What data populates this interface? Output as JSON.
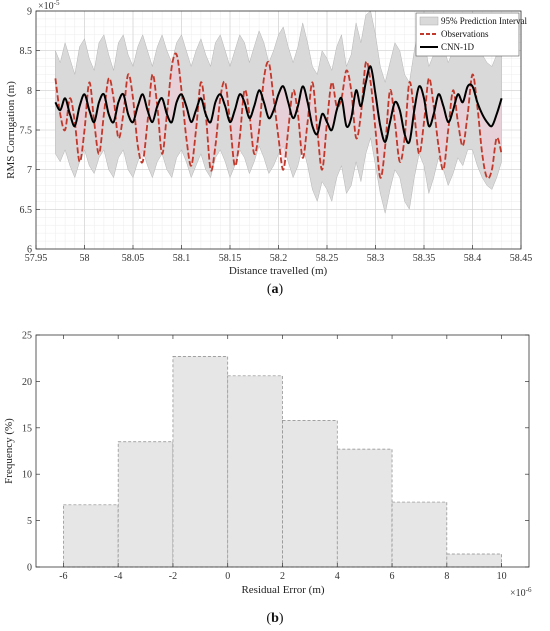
{
  "chart_data": [
    {
      "type": "line",
      "panel_label": "a",
      "xlabel": "Distance travelled (m)",
      "ylabel": "RMS Corrugation (m)",
      "y_exponent": "×10",
      "y_exponent_power": "-5",
      "xlim": [
        57.95,
        58.45
      ],
      "ylim": [
        6.0,
        9.0
      ],
      "x_ticks": [
        "57.95",
        "58",
        "58.05",
        "58.1",
        "58.15",
        "58.2",
        "58.25",
        "58.3",
        "58.35",
        "58.4",
        "58.45"
      ],
      "y_ticks": [
        "6",
        "6.5",
        "7",
        "7.5",
        "8",
        "8.5",
        "9"
      ],
      "grid": true,
      "legend_position": "top-right",
      "legend": [
        "95% Prediction Interval",
        "Observations",
        "CNN-1D"
      ],
      "series": [
        {
          "name": "Observations",
          "x": [
            57.97,
            57.975,
            57.98,
            57.985,
            57.99,
            57.995,
            58.0,
            58.005,
            58.01,
            58.015,
            58.02,
            58.025,
            58.03,
            58.035,
            58.04,
            58.045,
            58.05,
            58.055,
            58.06,
            58.065,
            58.07,
            58.075,
            58.08,
            58.085,
            58.09,
            58.095,
            58.1,
            58.105,
            58.11,
            58.115,
            58.12,
            58.125,
            58.13,
            58.135,
            58.14,
            58.145,
            58.15,
            58.155,
            58.16,
            58.165,
            58.17,
            58.175,
            58.18,
            58.185,
            58.19,
            58.195,
            58.2,
            58.205,
            58.21,
            58.215,
            58.22,
            58.225,
            58.23,
            58.235,
            58.24,
            58.245,
            58.25,
            58.255,
            58.26,
            58.265,
            58.27,
            58.275,
            58.28,
            58.285,
            58.29,
            58.295,
            58.3,
            58.305,
            58.31,
            58.315,
            58.32,
            58.325,
            58.33,
            58.335,
            58.34,
            58.345,
            58.35,
            58.355,
            58.36,
            58.365,
            58.37,
            58.375,
            58.38,
            58.385,
            58.39,
            58.395,
            58.4,
            58.405,
            58.41,
            58.415,
            58.42,
            58.425,
            58.43
          ],
          "values": [
            8.15,
            7.7,
            7.5,
            7.9,
            7.6,
            7.1,
            7.5,
            8.1,
            7.6,
            7.2,
            7.7,
            8.15,
            7.9,
            7.4,
            7.7,
            8.2,
            7.9,
            7.3,
            7.1,
            7.6,
            8.2,
            7.8,
            7.2,
            7.7,
            8.3,
            8.45,
            8.0,
            7.4,
            7.05,
            7.5,
            8.1,
            7.7,
            7.0,
            7.3,
            7.9,
            8.1,
            7.6,
            7.05,
            7.4,
            8.0,
            7.7,
            7.2,
            7.5,
            8.15,
            8.35,
            7.9,
            7.4,
            7.0,
            7.5,
            8.0,
            7.7,
            7.15,
            7.6,
            8.1,
            7.5,
            7.0,
            7.6,
            8.1,
            7.8,
            7.9,
            8.25,
            8.0,
            7.4,
            7.7,
            8.35,
            8.1,
            7.5,
            6.9,
            7.3,
            8.0,
            7.6,
            7.1,
            7.4,
            8.1,
            7.7,
            7.2,
            7.6,
            8.15,
            7.8,
            7.3,
            7.0,
            7.5,
            8.0,
            7.6,
            7.3,
            7.7,
            8.2,
            7.8,
            7.2,
            6.9,
            7.0,
            7.4,
            7.2
          ]
        },
        {
          "name": "CNN-1D",
          "x": [
            57.97,
            57.975,
            57.98,
            57.985,
            57.99,
            57.995,
            58.0,
            58.005,
            58.01,
            58.015,
            58.02,
            58.025,
            58.03,
            58.035,
            58.04,
            58.045,
            58.05,
            58.055,
            58.06,
            58.065,
            58.07,
            58.075,
            58.08,
            58.085,
            58.09,
            58.095,
            58.1,
            58.105,
            58.11,
            58.115,
            58.12,
            58.125,
            58.13,
            58.135,
            58.14,
            58.145,
            58.15,
            58.155,
            58.16,
            58.165,
            58.17,
            58.175,
            58.18,
            58.185,
            58.19,
            58.195,
            58.2,
            58.205,
            58.21,
            58.215,
            58.22,
            58.225,
            58.23,
            58.235,
            58.24,
            58.245,
            58.25,
            58.255,
            58.26,
            58.265,
            58.27,
            58.275,
            58.28,
            58.285,
            58.29,
            58.295,
            58.3,
            58.305,
            58.31,
            58.315,
            58.32,
            58.325,
            58.33,
            58.335,
            58.34,
            58.345,
            58.35,
            58.355,
            58.36,
            58.365,
            58.37,
            58.375,
            58.38,
            58.385,
            58.39,
            58.395,
            58.4,
            58.405,
            58.41,
            58.415,
            58.42,
            58.425,
            58.43
          ],
          "values": [
            7.85,
            7.75,
            7.9,
            7.7,
            7.55,
            7.8,
            7.95,
            7.75,
            7.6,
            7.85,
            7.95,
            7.7,
            7.6,
            7.85,
            7.95,
            7.7,
            7.6,
            7.8,
            7.95,
            7.75,
            7.6,
            7.8,
            7.9,
            7.7,
            7.6,
            7.85,
            7.95,
            7.8,
            7.6,
            7.75,
            7.9,
            7.7,
            7.6,
            7.85,
            7.95,
            7.8,
            7.6,
            7.75,
            7.95,
            7.85,
            7.65,
            7.8,
            8.0,
            7.85,
            7.65,
            7.75,
            7.95,
            8.05,
            7.85,
            7.65,
            7.8,
            8.05,
            7.85,
            7.55,
            7.45,
            7.7,
            7.6,
            7.5,
            7.75,
            7.9,
            7.55,
            7.65,
            8.0,
            7.8,
            8.1,
            8.3,
            7.95,
            7.55,
            7.35,
            7.6,
            7.85,
            7.75,
            7.45,
            7.35,
            7.75,
            8.05,
            7.9,
            7.55,
            7.7,
            7.95,
            7.8,
            7.6,
            7.75,
            7.95,
            7.85,
            8.05,
            8.05,
            7.85,
            7.7,
            7.6,
            7.55,
            7.7,
            7.9
          ]
        }
      ],
      "prediction_interval": {
        "name": "95% Prediction Interval",
        "x": [
          57.97,
          57.975,
          57.98,
          57.985,
          57.99,
          57.995,
          58.0,
          58.005,
          58.01,
          58.015,
          58.02,
          58.025,
          58.03,
          58.035,
          58.04,
          58.045,
          58.05,
          58.055,
          58.06,
          58.065,
          58.07,
          58.075,
          58.08,
          58.085,
          58.09,
          58.095,
          58.1,
          58.105,
          58.11,
          58.115,
          58.12,
          58.125,
          58.13,
          58.135,
          58.14,
          58.145,
          58.15,
          58.155,
          58.16,
          58.165,
          58.17,
          58.175,
          58.18,
          58.185,
          58.19,
          58.195,
          58.2,
          58.205,
          58.21,
          58.215,
          58.22,
          58.225,
          58.23,
          58.235,
          58.24,
          58.245,
          58.25,
          58.255,
          58.26,
          58.265,
          58.27,
          58.275,
          58.28,
          58.285,
          58.29,
          58.295,
          58.3,
          58.305,
          58.31,
          58.315,
          58.32,
          58.325,
          58.33,
          58.335,
          58.34,
          58.345,
          58.35,
          58.355,
          58.36,
          58.365,
          58.37,
          58.375,
          58.38,
          58.385,
          58.39,
          58.395,
          58.4,
          58.405,
          58.41,
          58.415,
          58.42,
          58.425,
          58.43
        ],
        "upper": [
          8.5,
          8.35,
          8.6,
          8.4,
          8.2,
          8.55,
          8.65,
          8.4,
          8.25,
          8.6,
          8.7,
          8.45,
          8.25,
          8.6,
          8.7,
          8.45,
          8.3,
          8.55,
          8.7,
          8.5,
          8.3,
          8.55,
          8.7,
          8.5,
          8.35,
          8.6,
          8.7,
          8.5,
          8.3,
          8.5,
          8.65,
          8.45,
          8.3,
          8.6,
          8.7,
          8.5,
          8.3,
          8.5,
          8.7,
          8.6,
          8.35,
          8.55,
          8.75,
          8.6,
          8.35,
          8.5,
          8.7,
          8.8,
          8.55,
          8.35,
          8.55,
          8.85,
          8.6,
          8.3,
          8.2,
          8.5,
          8.4,
          8.25,
          8.55,
          8.7,
          8.3,
          8.45,
          8.85,
          8.6,
          8.95,
          9.0,
          8.7,
          8.3,
          8.1,
          8.35,
          8.6,
          8.5,
          8.2,
          8.1,
          8.5,
          8.8,
          8.65,
          8.3,
          8.45,
          8.7,
          8.55,
          8.35,
          8.5,
          8.7,
          8.6,
          8.8,
          8.8,
          8.6,
          8.45,
          8.35,
          8.3,
          8.45,
          8.65
        ],
        "lower": [
          7.2,
          7.1,
          7.25,
          7.05,
          6.9,
          7.1,
          7.25,
          7.05,
          6.95,
          7.15,
          7.25,
          7.0,
          6.9,
          7.15,
          7.25,
          7.0,
          6.9,
          7.1,
          7.25,
          7.05,
          6.9,
          7.1,
          7.2,
          7.0,
          6.9,
          7.15,
          7.25,
          7.1,
          6.9,
          7.05,
          7.2,
          7.0,
          6.9,
          7.15,
          7.25,
          7.1,
          6.9,
          7.05,
          7.25,
          7.15,
          6.95,
          7.1,
          7.3,
          7.15,
          6.95,
          7.05,
          7.2,
          7.3,
          7.1,
          6.9,
          7.05,
          7.3,
          7.05,
          6.75,
          6.6,
          6.85,
          6.75,
          6.6,
          6.9,
          7.05,
          6.7,
          6.8,
          7.1,
          6.85,
          7.2,
          7.4,
          7.05,
          6.7,
          6.45,
          6.75,
          7.0,
          6.9,
          6.6,
          6.5,
          6.9,
          7.2,
          7.05,
          6.7,
          6.9,
          7.15,
          7.0,
          6.8,
          6.95,
          7.15,
          7.05,
          7.25,
          7.25,
          7.05,
          6.9,
          6.8,
          6.75,
          6.9,
          7.1
        ]
      }
    },
    {
      "type": "bar",
      "panel_label": "b",
      "xlabel": "Residual Error (m)",
      "ylabel": "Frequency (%)",
      "x_exponent": "×10",
      "x_exponent_power": "-6",
      "bin_edges": [
        -6,
        -4,
        -2,
        0,
        2,
        4,
        6,
        8,
        10
      ],
      "values": [
        6.7,
        13.5,
        22.7,
        20.6,
        15.8,
        12.7,
        7.0,
        1.4
      ],
      "xlim": [
        -7,
        11
      ],
      "ylim": [
        0,
        25
      ],
      "x_ticks": [
        "-6",
        "-4",
        "-2",
        "0",
        "2",
        "4",
        "6",
        "8",
        "10"
      ],
      "y_ticks": [
        "0",
        "5",
        "10",
        "15",
        "20",
        "25"
      ],
      "grid": false
    }
  ],
  "colors": {
    "band": "#d9d9d9",
    "observations": "#c0392b",
    "cnn": "#000000",
    "hist_fill": "#e6e6e6",
    "hist_edge": "#8a8a8a",
    "pink_fill": "#f3c9d6"
  }
}
